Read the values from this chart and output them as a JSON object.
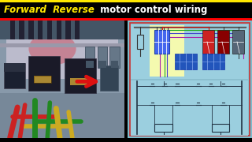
{
  "title_yellow": "Forward  Reverse",
  "title_white": " motor control wiring",
  "title_bg": "#000000",
  "title_yellow_color": "#FFE800",
  "title_white_color": "#FFFFFF",
  "title_fontsize": 8.5,
  "top_stripe_color": "#FFE800",
  "bottom_stripe1": "#FF0000",
  "bottom_stripe2": "#0000AA",
  "bottom_stripe3": "#FFE800",
  "fig_bg": "#000000",
  "left_panel_bg": "#6a7a88",
  "right_panel_bg": "#7EB8CC",
  "diagram_bg": "#8BBFCF",
  "yellow_highlight": "#FFFFAA",
  "cb_blue": "#4466EE",
  "contactor_blue": "#2255BB",
  "btn_red": "#CC2222",
  "btn_darkred": "#881111",
  "btn_gray": "#555566",
  "wire_red": "#CC1111",
  "wire_green": "#22AA22",
  "wire_blue": "#4444CC",
  "wire_magenta": "#AA22AA",
  "ladder_color": "#223344",
  "arrow_color": "#DD1111",
  "photo_metal": "#8899AA",
  "photo_dark": "#334455",
  "photo_darker": "#222233",
  "photo_pink_glow": "#CC6677",
  "photo_wire_red": "#CC2222",
  "photo_wire_green": "#228822",
  "photo_wire_yellow": "#CCAA22"
}
